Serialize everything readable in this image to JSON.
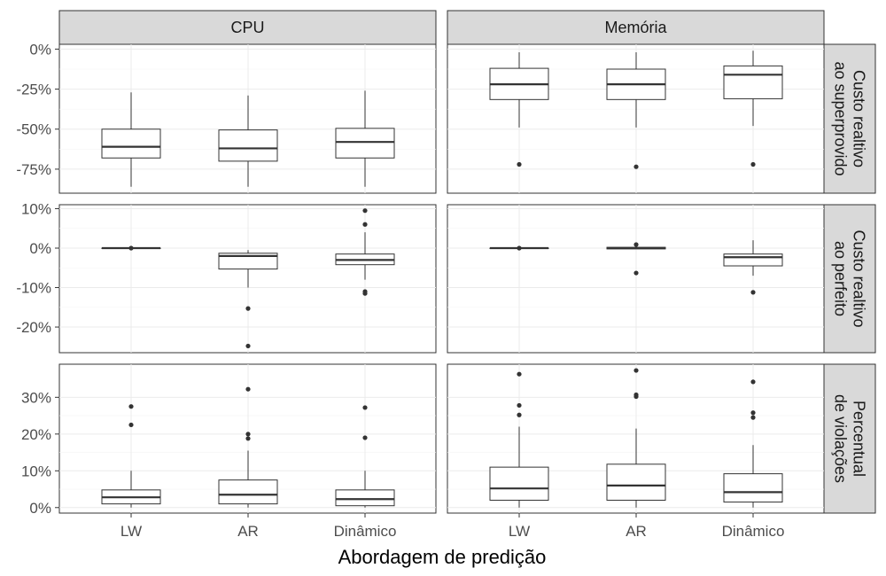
{
  "chart_data": {
    "type": "boxplot",
    "xlabel": "Abordagem de predição",
    "ylabel": "",
    "categories": [
      "LW",
      "AR",
      "Dinâmico"
    ],
    "columns": [
      "CPU",
      "Memória"
    ],
    "rows": [
      {
        "label": "Custo realtivo ao superprovido",
        "label_lines": [
          "Custo realtivo",
          "ao superprovido"
        ],
        "ylim": [
          -90,
          3
        ],
        "yticks": [
          0,
          -25,
          -50,
          -75
        ],
        "ytick_labels": [
          "0%",
          "-25%",
          "-50%",
          "-75%"
        ],
        "panels": {
          "CPU": [
            {
              "category": "LW",
              "lower": -86,
              "q1": -68,
              "median": -61,
              "q3": -50,
              "upper": -27,
              "outliers": []
            },
            {
              "category": "AR",
              "lower": -86,
              "q1": -70,
              "median": -62,
              "q3": -50.5,
              "upper": -29,
              "outliers": []
            },
            {
              "category": "Dinâmico",
              "lower": -86,
              "q1": -68,
              "median": -58,
              "q3": -49.5,
              "upper": -26,
              "outliers": []
            }
          ],
          "Memória": [
            {
              "category": "LW",
              "lower": -49,
              "q1": -31.5,
              "median": -22,
              "q3": -12,
              "upper": -2,
              "outliers": [
                -72
              ]
            },
            {
              "category": "AR",
              "lower": -49,
              "q1": -31.5,
              "median": -22,
              "q3": -12.5,
              "upper": -2,
              "outliers": [
                -73.5
              ]
            },
            {
              "category": "Dinâmico",
              "lower": -48,
              "q1": -31,
              "median": -16,
              "q3": -10.5,
              "upper": -1,
              "outliers": [
                -72
              ]
            }
          ]
        }
      },
      {
        "label": "Custo realtivo ao perfeito",
        "label_lines": [
          "Custo realtivo",
          "ao perfeito"
        ],
        "ylim": [
          -26.5,
          11
        ],
        "yticks": [
          10,
          0,
          -10,
          -20
        ],
        "ytick_labels": [
          "10%",
          "0%",
          "-10%",
          "-20%"
        ],
        "panels": {
          "CPU": [
            {
              "category": "LW",
              "lower": 0,
              "q1": 0,
              "median": 0,
              "q3": 0,
              "upper": 0,
              "outliers": [
                0
              ]
            },
            {
              "category": "AR",
              "lower": -10,
              "q1": -5.3,
              "median": -2,
              "q3": -1.3,
              "upper": -0.5,
              "outliers": [
                -15.3,
                -24.8
              ]
            },
            {
              "category": "Dinâmico",
              "lower": -8,
              "q1": -4.2,
              "median": -3,
              "q3": -1.5,
              "upper": 4,
              "outliers": [
                9.5,
                6,
                -11,
                -11.5
              ]
            }
          ],
          "Memória": [
            {
              "category": "LW",
              "lower": 0,
              "q1": 0,
              "median": 0,
              "q3": 0,
              "upper": 0,
              "outliers": [
                0
              ]
            },
            {
              "category": "AR",
              "lower": 0,
              "q1": -0.2,
              "median": 0,
              "q3": 0.2,
              "upper": 0.4,
              "outliers": [
                0.9,
                -6.3
              ]
            },
            {
              "category": "Dinâmico",
              "lower": -7,
              "q1": -4.5,
              "median": -2.3,
              "q3": -1.5,
              "upper": 2,
              "outliers": [
                -11.2
              ]
            }
          ]
        }
      },
      {
        "label": "Percentual de violações",
        "label_lines": [
          "Percentual",
          "de violações"
        ],
        "ylim": [
          -1.5,
          39
        ],
        "yticks": [
          30,
          20,
          10,
          0
        ],
        "ytick_labels": [
          "30%",
          "20%",
          "10%",
          "0%"
        ],
        "panels": {
          "CPU": [
            {
              "category": "LW",
              "lower": 0,
              "q1": 1,
              "median": 2.8,
              "q3": 4.8,
              "upper": 10,
              "outliers": [
                27.5,
                22.5
              ]
            },
            {
              "category": "AR",
              "lower": 0,
              "q1": 1,
              "median": 3.5,
              "q3": 7.5,
              "upper": 15.5,
              "outliers": [
                32.2,
                20,
                18.8
              ]
            },
            {
              "category": "Dinâmico",
              "lower": 0,
              "q1": 0.5,
              "median": 2.3,
              "q3": 4.8,
              "upper": 10,
              "outliers": [
                27.2,
                19
              ]
            }
          ],
          "Memória": [
            {
              "category": "LW",
              "lower": 0,
              "q1": 2,
              "median": 5.2,
              "q3": 11,
              "upper": 22,
              "outliers": [
                36.3,
                27.8,
                25.2
              ]
            },
            {
              "category": "AR",
              "lower": 0,
              "q1": 2,
              "median": 6,
              "q3": 11.8,
              "upper": 21.5,
              "outliers": [
                37.3,
                30.7,
                30.2
              ]
            },
            {
              "category": "Dinâmico",
              "lower": 0,
              "q1": 1.5,
              "median": 4.2,
              "q3": 9.2,
              "upper": 17,
              "outliers": [
                34.2,
                25.8,
                24.5
              ]
            }
          ]
        }
      }
    ]
  }
}
